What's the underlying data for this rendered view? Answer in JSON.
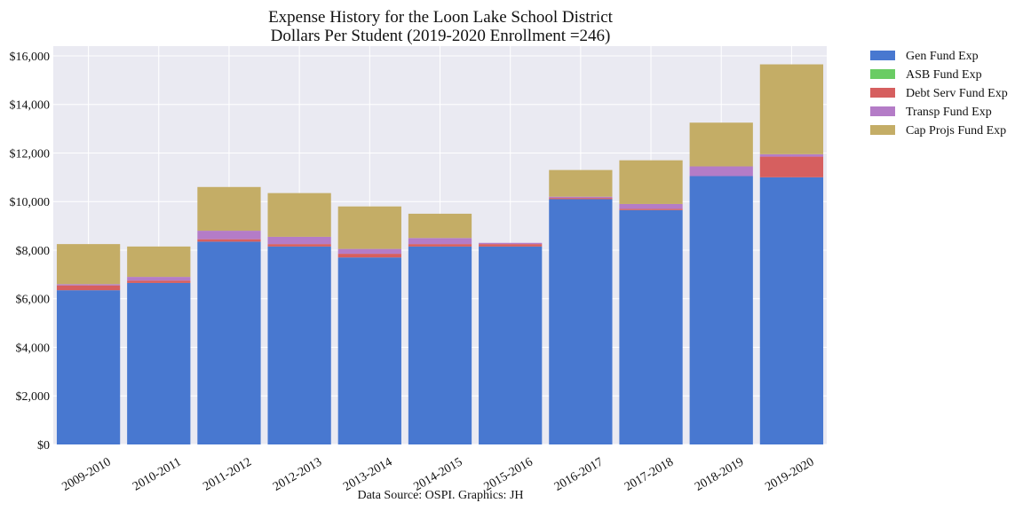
{
  "chart_data": {
    "type": "bar",
    "stacked": true,
    "title": "Expense History for the Loon Lake School District",
    "subtitle": "Dollars Per Student (2019-2020 Enrollment =246)",
    "xlabel": "",
    "ylabel": "",
    "footnote": "Data Source: OSPI. Graphics: JH",
    "ylim": [
      0,
      16400
    ],
    "yticks": [
      0,
      2000,
      4000,
      6000,
      8000,
      10000,
      12000,
      14000,
      16000
    ],
    "ytick_labels": [
      "$0",
      "$2,000",
      "$4,000",
      "$6,000",
      "$8,000",
      "$10,000",
      "$12,000",
      "$14,000",
      "$16,000"
    ],
    "grid": true,
    "legend_position": "outside-top-right",
    "categories": [
      "2009-2010",
      "2010-2011",
      "2011-2012",
      "2012-2013",
      "2013-2014",
      "2014-2015",
      "2015-2016",
      "2016-2017",
      "2017-2018",
      "2018-2019",
      "2019-2020"
    ],
    "series": [
      {
        "name": "Gen Fund Exp",
        "color": "#4878d0",
        "values": [
          6350,
          6650,
          8350,
          8150,
          7700,
          8150,
          8150,
          10100,
          9650,
          11050,
          11000
        ]
      },
      {
        "name": "ASB Fund Exp",
        "color": "#6acc64",
        "values": [
          0,
          0,
          0,
          0,
          0,
          0,
          0,
          0,
          0,
          0,
          0
        ]
      },
      {
        "name": "Debt Serv Fund Exp",
        "color": "#d65f5f",
        "values": [
          200,
          100,
          100,
          100,
          150,
          100,
          100,
          50,
          50,
          0,
          850
        ]
      },
      {
        "name": "Transp Fund Exp",
        "color": "#b47cc7",
        "values": [
          50,
          150,
          350,
          300,
          200,
          250,
          50,
          50,
          200,
          400,
          100
        ]
      },
      {
        "name": "Cap Projs Fund Exp",
        "color": "#c4ad66",
        "values": [
          1650,
          1250,
          1800,
          1800,
          1750,
          1000,
          0,
          1100,
          1800,
          1800,
          3700
        ]
      }
    ]
  },
  "colors": {
    "plot_background": "#eaeaf2",
    "grid": "#ffffff"
  }
}
